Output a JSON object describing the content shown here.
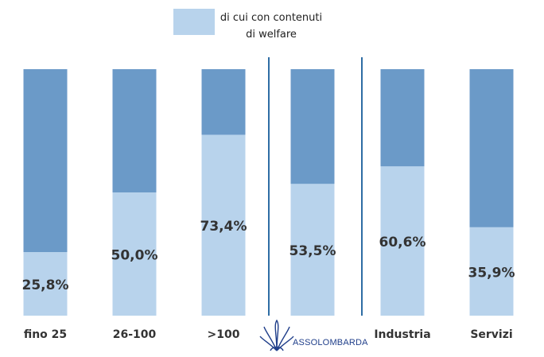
{
  "legend": {
    "label": "di cui con contenuti di welfare"
  },
  "logo": {
    "text": "ASSOLOMBARDA"
  },
  "colors": {
    "total": "#6b9ac8",
    "welfare": "#b8d3ec",
    "separator": "#2e6da4",
    "text": "#333333",
    "logo": "#1f3e8a"
  },
  "chart_data": {
    "type": "bar",
    "stacked": true,
    "categories": [
      "fino 25",
      "26-100",
      ">100",
      "",
      "Industria",
      "Servizi"
    ],
    "series": [
      {
        "name": "di cui con contenuti di welfare",
        "values": [
          25.8,
          50.0,
          73.4,
          53.5,
          60.6,
          35.9
        ]
      }
    ],
    "total_values": [
      100,
      100,
      100,
      100,
      100,
      100
    ],
    "data_labels": [
      "25,8%",
      "50,0%",
      "73,4%",
      "53,5%",
      "60,6%",
      "35,9%"
    ],
    "ylim": [
      0,
      100
    ],
    "legend_position": "top"
  }
}
